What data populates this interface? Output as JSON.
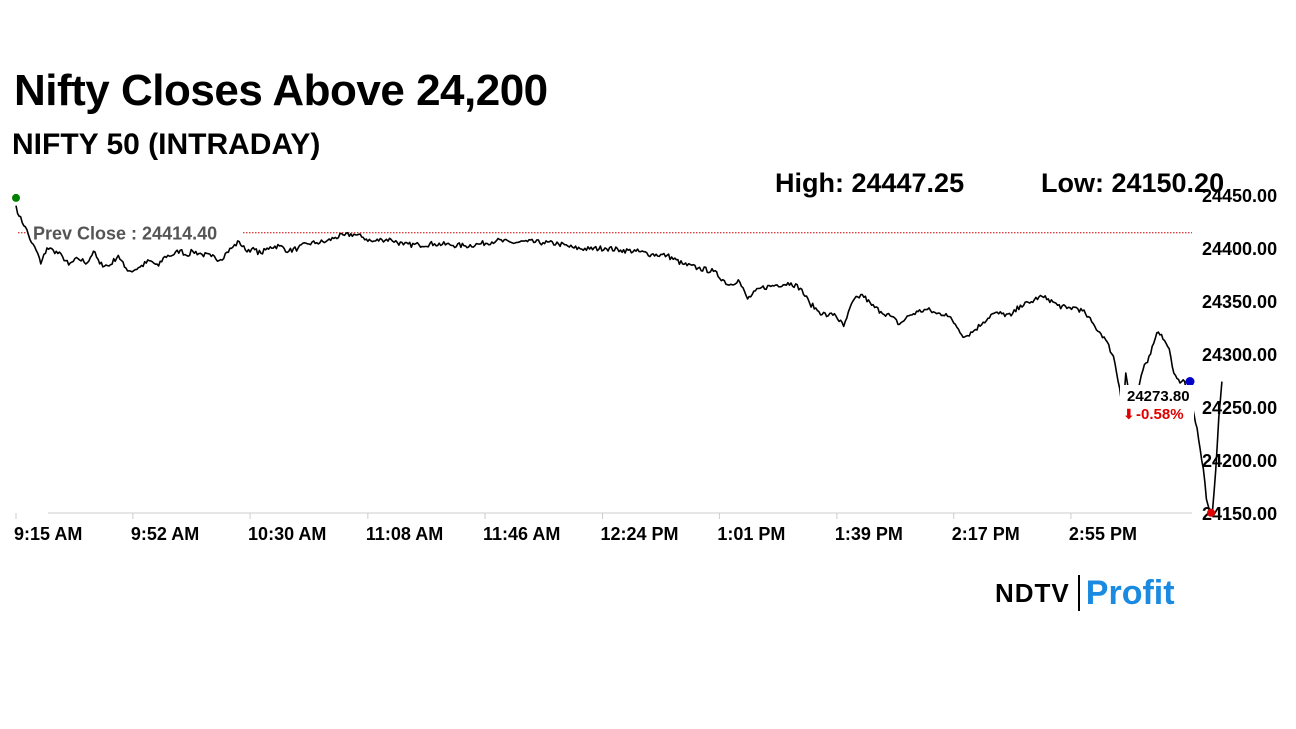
{
  "headline": "Nifty Closes Above 24,200",
  "subtitle": "NIFTY 50 (INTRADAY)",
  "stats": {
    "high": "High: 24447.25",
    "low": "Low: 24150.20"
  },
  "brand": {
    "ndtv": "NDTV",
    "profit": "Profit"
  },
  "colors": {
    "line": "#000000",
    "prev_close": "#cc0000",
    "open_marker": "#008000",
    "low_marker": "#e00000",
    "last_marker": "#0000c8",
    "change_text": "#e00000",
    "axis": "#cccccc",
    "brand_accent": "#1a8be0"
  },
  "chart_data": {
    "type": "line",
    "title": "NIFTY 50 (INTRADAY)",
    "x_ticks": [
      "9:15 AM",
      "9:52 AM",
      "10:30 AM",
      "11:08 AM",
      "11:46 AM",
      "12:24 PM",
      "1:01 PM",
      "1:39 PM",
      "2:17 PM",
      "2:55 PM"
    ],
    "ylim": [
      24150,
      24450
    ],
    "y_ticks": [
      "24150.00",
      "24200.00",
      "24250.00",
      "24300.00",
      "24350.00",
      "24400.00",
      "24450.00"
    ],
    "y_tick_values": [
      24150,
      24200,
      24250,
      24300,
      24350,
      24400,
      24450
    ],
    "x_minutes_range": [
      0,
      375
    ],
    "prev_close": 24414.4,
    "prev_close_label": "Prev Close : 24414.40",
    "last_value_label": "24273.80",
    "change_label": "-0.58%",
    "change_arrow": "⬇",
    "high": 24447.25,
    "low": 24150.2,
    "series": [
      {
        "points": [
          [
            0,
            24440
          ],
          [
            1,
            24430
          ],
          [
            3,
            24420
          ],
          [
            5,
            24405
          ],
          [
            7,
            24395
          ],
          [
            8,
            24385
          ],
          [
            10,
            24400
          ],
          [
            12,
            24398
          ],
          [
            15,
            24392
          ],
          [
            17,
            24384
          ],
          [
            20,
            24390
          ],
          [
            23,
            24386
          ],
          [
            25,
            24397
          ],
          [
            27,
            24385
          ],
          [
            30,
            24383
          ],
          [
            33,
            24393
          ],
          [
            35,
            24382
          ],
          [
            37,
            24378
          ],
          [
            40,
            24382
          ],
          [
            43,
            24388
          ],
          [
            46,
            24383
          ],
          [
            48,
            24392
          ],
          [
            51,
            24394
          ],
          [
            53,
            24398
          ],
          [
            55,
            24393
          ],
          [
            57,
            24397
          ],
          [
            60,
            24394
          ],
          [
            63,
            24392
          ],
          [
            66,
            24389
          ],
          [
            68,
            24396
          ],
          [
            70,
            24401
          ],
          [
            72,
            24406
          ],
          [
            74,
            24398
          ],
          [
            76,
            24399
          ],
          [
            79,
            24395
          ],
          [
            82,
            24401
          ],
          [
            85,
            24402
          ],
          [
            88,
            24397
          ],
          [
            91,
            24400
          ],
          [
            94,
            24404
          ],
          [
            97,
            24405
          ],
          [
            100,
            24406
          ],
          [
            103,
            24410
          ],
          [
            106,
            24412
          ],
          [
            109,
            24413
          ],
          [
            112,
            24410
          ],
          [
            115,
            24406
          ],
          [
            118,
            24408
          ],
          [
            121,
            24408
          ],
          [
            125,
            24403
          ],
          [
            130,
            24403
          ],
          [
            135,
            24404
          ],
          [
            140,
            24403
          ],
          [
            145,
            24402
          ],
          [
            150,
            24404
          ],
          [
            155,
            24407
          ],
          [
            160,
            24405
          ],
          [
            165,
            24406
          ],
          [
            170,
            24405
          ],
          [
            175,
            24404
          ],
          [
            180,
            24400
          ],
          [
            185,
            24399
          ],
          [
            190,
            24400
          ],
          [
            195,
            24398
          ],
          [
            200,
            24397
          ],
          [
            205,
            24394
          ],
          [
            210,
            24393
          ],
          [
            215,
            24385
          ],
          [
            220,
            24381
          ],
          [
            225,
            24378
          ],
          [
            230,
            24365
          ],
          [
            233,
            24370
          ],
          [
            236,
            24352
          ],
          [
            240,
            24362
          ],
          [
            245,
            24365
          ],
          [
            250,
            24367
          ],
          [
            253,
            24362
          ],
          [
            256,
            24348
          ],
          [
            259,
            24340
          ],
          [
            262,
            24336
          ],
          [
            264,
            24338
          ],
          [
            267,
            24326
          ],
          [
            270,
            24350
          ],
          [
            273,
            24356
          ],
          [
            276,
            24346
          ],
          [
            279,
            24340
          ],
          [
            282,
            24336
          ],
          [
            285,
            24328
          ],
          [
            288,
            24336
          ],
          [
            291,
            24340
          ],
          [
            294,
            24342
          ],
          [
            297,
            24338
          ],
          [
            300,
            24338
          ],
          [
            303,
            24328
          ],
          [
            306,
            24316
          ],
          [
            309,
            24322
          ],
          [
            312,
            24330
          ],
          [
            315,
            24338
          ],
          [
            318,
            24338
          ],
          [
            321,
            24336
          ],
          [
            324,
            24346
          ],
          [
            327,
            24348
          ],
          [
            330,
            24354
          ],
          [
            333,
            24352
          ],
          [
            336,
            24346
          ],
          [
            339,
            24343
          ],
          [
            342,
            24344
          ],
          [
            345,
            24338
          ],
          [
            348,
            24326
          ],
          [
            351,
            24316
          ],
          [
            354,
            24298
          ],
          [
            356,
            24268
          ],
          [
            357,
            24247
          ],
          [
            358,
            24282
          ],
          [
            359,
            24264
          ],
          [
            360,
            24270
          ],
          [
            361,
            24255
          ],
          [
            362,
            24266
          ],
          [
            363,
            24280
          ],
          [
            364,
            24290
          ],
          [
            365,
            24292
          ],
          [
            366,
            24300
          ],
          [
            367,
            24310
          ],
          [
            368,
            24320
          ],
          [
            369,
            24318
          ],
          [
            370,
            24314
          ],
          [
            371,
            24310
          ],
          [
            372,
            24305
          ],
          [
            373,
            24288
          ],
          [
            374,
            24280
          ],
          [
            375,
            24276
          ],
          [
            376,
            24274
          ],
          [
            377,
            24274
          ],
          [
            378,
            24260
          ],
          [
            379,
            24255
          ],
          [
            380,
            24243
          ],
          [
            381,
            24230
          ],
          [
            382,
            24210
          ],
          [
            383,
            24192
          ],
          [
            384,
            24163
          ],
          [
            385,
            24152
          ],
          [
            386,
            24153
          ],
          [
            387,
            24190
          ],
          [
            388,
            24240
          ],
          [
            389,
            24274
          ]
        ]
      }
    ]
  }
}
